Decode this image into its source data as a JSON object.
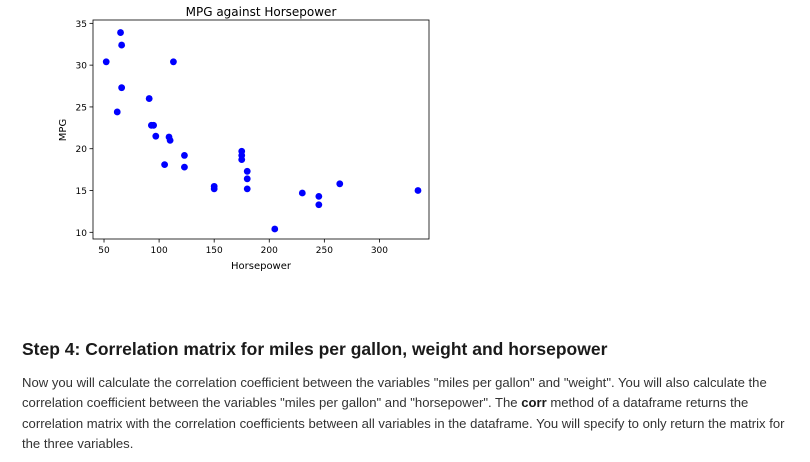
{
  "chart_data": {
    "type": "scatter",
    "title": "MPG against Horsepower",
    "xlabel": "Horsepower",
    "ylabel": "MPG",
    "xlim": [
      40,
      345
    ],
    "ylim": [
      9.2,
      35.4
    ],
    "xticks": [
      50,
      100,
      150,
      200,
      250,
      300
    ],
    "yticks": [
      10,
      15,
      20,
      25,
      30,
      35
    ],
    "grid": false,
    "series": [
      {
        "color": "#0000ff",
        "points": [
          [
            52,
            30.4
          ],
          [
            62,
            24.4
          ],
          [
            65,
            33.9
          ],
          [
            66,
            32.4
          ],
          [
            66,
            27.3
          ],
          [
            91,
            26.0
          ],
          [
            93,
            22.8
          ],
          [
            95,
            22.8
          ],
          [
            97,
            21.5
          ],
          [
            105,
            18.1
          ],
          [
            109,
            21.4
          ],
          [
            110,
            21.0
          ],
          [
            113,
            30.4
          ],
          [
            123,
            19.2
          ],
          [
            123,
            17.8
          ],
          [
            150,
            15.5
          ],
          [
            150,
            15.2
          ],
          [
            175,
            19.7
          ],
          [
            175,
            19.2
          ],
          [
            175,
            18.7
          ],
          [
            180,
            17.3
          ],
          [
            180,
            16.4
          ],
          [
            180,
            15.2
          ],
          [
            205,
            10.4
          ],
          [
            230,
            14.7
          ],
          [
            245,
            14.3
          ],
          [
            245,
            13.3
          ],
          [
            264,
            15.8
          ],
          [
            335,
            15.0
          ]
        ]
      }
    ]
  },
  "section": {
    "heading": "Step 4: Correlation matrix for miles per gallon, weight and horsepower",
    "para_part1": "Now you will calculate the correlation coefficient between the variables \"miles per gallon\" and \"weight\". You will also calculate the correlation coefficient between the variables \"miles per gallon\" and \"horsepower\". The ",
    "para_bold": "corr",
    "para_part2": " method of a dataframe returns the correlation matrix with the correlation coefficients between all variables in the dataframe. You will specify to only return the matrix for the three variables."
  }
}
